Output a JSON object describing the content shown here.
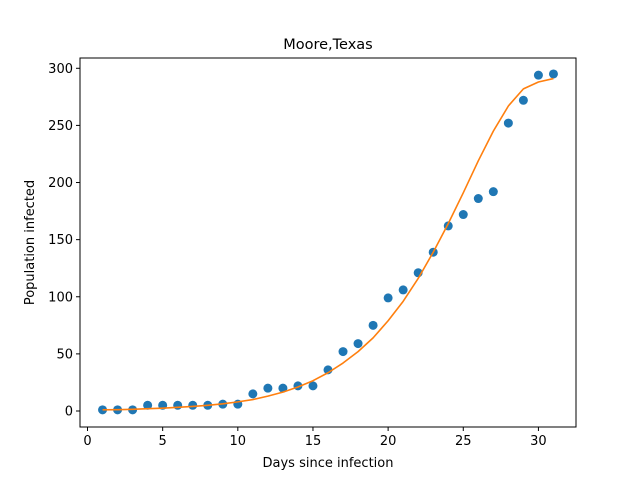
{
  "chart_data": {
    "type": "scatter",
    "title": "Moore,Texas",
    "xlabel": "Days since infection",
    "ylabel": "Population infected",
    "xlim": [
      -0.5,
      32.5
    ],
    "ylim": [
      -14,
      309
    ],
    "xticks": [
      0,
      5,
      10,
      15,
      20,
      25,
      30
    ],
    "yticks": [
      0,
      50,
      100,
      150,
      200,
      250,
      300
    ],
    "grid": false,
    "series": [
      {
        "kind": "scatter",
        "color": "#1f77b4",
        "x": [
          1,
          2,
          3,
          4,
          5,
          6,
          7,
          8,
          9,
          10,
          11,
          12,
          13,
          14,
          15,
          16,
          17,
          18,
          19,
          20,
          21,
          22,
          23,
          24,
          25,
          26,
          27,
          28,
          29,
          30,
          31
        ],
        "y": [
          1,
          1,
          1,
          5,
          5,
          5,
          5,
          5,
          6,
          6,
          15,
          20,
          20,
          22,
          22,
          36,
          52,
          59,
          75,
          99,
          106,
          121,
          139,
          162,
          172,
          186,
          192,
          252,
          272,
          294,
          295
        ]
      },
      {
        "kind": "line",
        "color": "#ff7f0e",
        "x": [
          1,
          2,
          3,
          4,
          5,
          6,
          7,
          8,
          9,
          10,
          11,
          12,
          13,
          14,
          15,
          16,
          17,
          18,
          19,
          20,
          21,
          22,
          23,
          24,
          25,
          26,
          27,
          28,
          29,
          30,
          31
        ],
        "y": [
          1,
          1.2,
          1.5,
          2,
          2.5,
          3.2,
          4,
          5,
          6.3,
          8,
          10,
          13,
          16.5,
          21,
          26.5,
          33.5,
          42,
          52,
          64,
          79,
          96,
          116,
          139,
          164,
          191,
          219,
          245,
          267,
          282,
          288,
          291
        ]
      }
    ]
  }
}
